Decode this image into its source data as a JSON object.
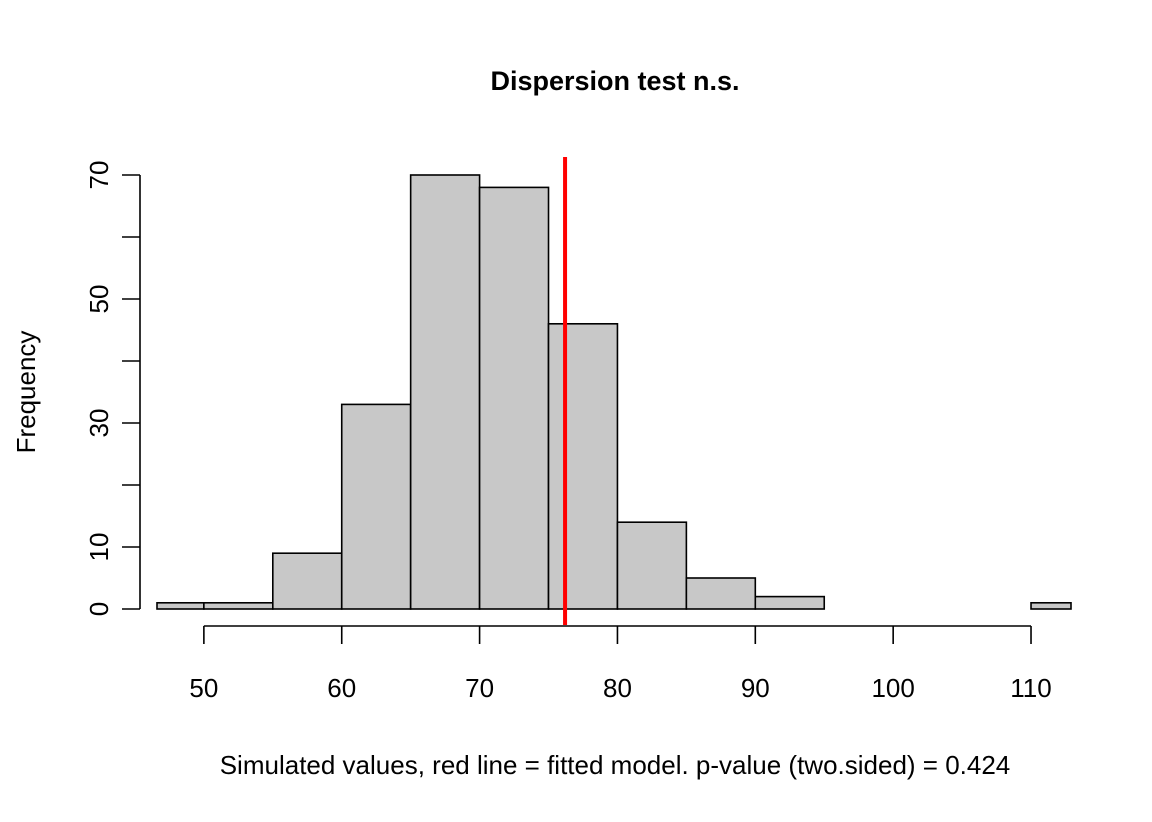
{
  "chart_data": {
    "type": "bar",
    "subtype": "histogram",
    "title": "Dispersion test n.s.",
    "xlabel": "Simulated values, red line = fitted model. p-value (two.sided) = 0.424",
    "ylabel": "Frequency",
    "bins": [
      {
        "start": 45,
        "end": 50,
        "count": 1
      },
      {
        "start": 50,
        "end": 55,
        "count": 1
      },
      {
        "start": 55,
        "end": 60,
        "count": 9
      },
      {
        "start": 60,
        "end": 65,
        "count": 33
      },
      {
        "start": 65,
        "end": 70,
        "count": 70
      },
      {
        "start": 70,
        "end": 75,
        "count": 68
      },
      {
        "start": 75,
        "end": 80,
        "count": 46
      },
      {
        "start": 80,
        "end": 85,
        "count": 14
      },
      {
        "start": 85,
        "end": 90,
        "count": 5
      },
      {
        "start": 90,
        "end": 95,
        "count": 2
      },
      {
        "start": 95,
        "end": 100,
        "count": 0
      },
      {
        "start": 100,
        "end": 105,
        "count": 0
      },
      {
        "start": 105,
        "end": 110,
        "count": 0
      },
      {
        "start": 110,
        "end": 115,
        "count": 1
      }
    ],
    "xlim": [
      46.6,
      112.9
    ],
    "ylim": [
      0,
      70
    ],
    "x_ticks": [
      50,
      60,
      70,
      80,
      90,
      100,
      110
    ],
    "x_tick_labels": [
      "50",
      "60",
      "70",
      "80",
      "90",
      "100",
      "110"
    ],
    "y_ticks": [
      0,
      10,
      20,
      30,
      40,
      50,
      60,
      70
    ],
    "y_tick_labels": [
      "0",
      "10",
      "",
      "30",
      "",
      "50",
      "",
      "70"
    ],
    "reference_line": {
      "x": 76.2,
      "color": "#ff0000"
    },
    "bar_color": "#c8c8c8",
    "grid": false
  }
}
